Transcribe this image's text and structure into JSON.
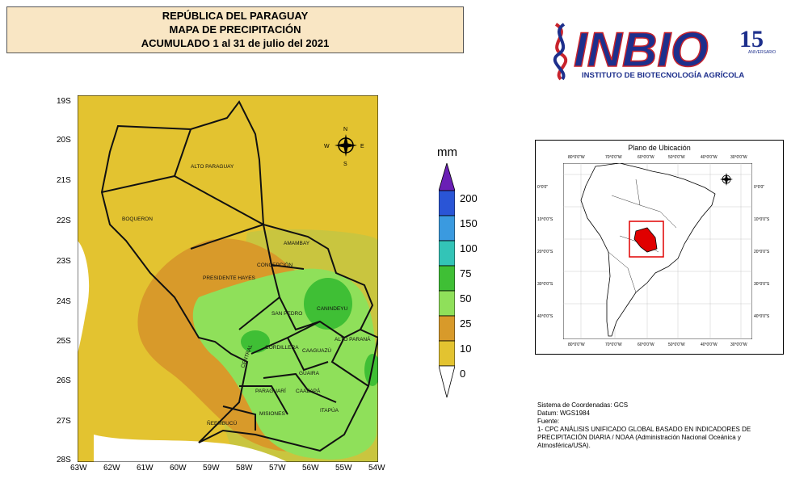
{
  "title": {
    "line1": "REPÚBLICA DEL PARAGUAY",
    "line2": "MAPA DE PRECIPITACIÓN",
    "line3": "ACUMULADO 1 al 31 de julio del 2021"
  },
  "logo": {
    "name": "INBIO",
    "subtitle": "INSTITUTO DE BIOTECNOLOGÍA AGRÍCOLA",
    "anniversary": "15",
    "anniversary_word": "ANIVERSARIO"
  },
  "map": {
    "lat_labels": [
      "19S",
      "20S",
      "21S",
      "22S",
      "23S",
      "24S",
      "25S",
      "26S",
      "27S",
      "28S"
    ],
    "lon_labels": [
      "63W",
      "62W",
      "61W",
      "60W",
      "59W",
      "58W",
      "57W",
      "56W",
      "55W",
      "54W"
    ],
    "departments": [
      "ALTO PARAGUAY",
      "BOQUERON",
      "AMAMBAY",
      "CONCEPCIÓN",
      "PRESIDENTE HAYES",
      "SAN PEDRO",
      "CANINDEYU",
      "CORDILLERA",
      "CAAGUAZÚ",
      "ALTO PARANÁ",
      "CENTRAL",
      "GUAIRA",
      "PARAGUARÍ",
      "CAAZAPÁ",
      "MISIONES",
      "ÑEEMBUCÚ",
      "ITAPÚA"
    ],
    "compass": {
      "n": "N",
      "s": "S",
      "e": "E",
      "w": "W"
    }
  },
  "legend": {
    "unit": "mm",
    "levels": [
      "200",
      "150",
      "100",
      "75",
      "50",
      "25",
      "10",
      "0"
    ],
    "colors": [
      "#6a1fb5",
      "#2a55d6",
      "#3a9ae0",
      "#33c4b7",
      "#3fbf35",
      "#8fe05a",
      "#d89a2a",
      "#e3c330"
    ]
  },
  "location": {
    "title": "Plano de Ubicación",
    "top_lon": [
      "80°0'0\"W",
      "70°0'0\"W",
      "60°0'0\"W",
      "50°0'0\"W",
      "40°0'0\"W",
      "30°0'0\"W"
    ],
    "bottom_lon": [
      "80°0'0\"W",
      "70°0'0\"W",
      "60°0'0\"W",
      "50°0'0\"W",
      "40°0'0\"W",
      "30°0'0\"W"
    ],
    "left_lat": [
      "0°0'0\"",
      "10°0'0\"S",
      "20°0'0\"S",
      "30°0'0\"S",
      "40°0'0\"S"
    ],
    "right_lat": [
      "0°0'0\"",
      "10°0'0\"S",
      "20°0'0\"S",
      "30°0'0\"S",
      "40°0'0\"S"
    ]
  },
  "source": {
    "line1": "Sistema de Coordenadas: GCS",
    "line2": "Datum: WGS1984",
    "line3": "Fuente:",
    "line4": "1- CPC ANÁLISIS UNIFICADO GLOBAL BASADO EN INDICADORES DE PRECIPITACIÓN DIARIA / NOAA (Administración Nacional Oceánica y Atmosférica/USA)."
  }
}
